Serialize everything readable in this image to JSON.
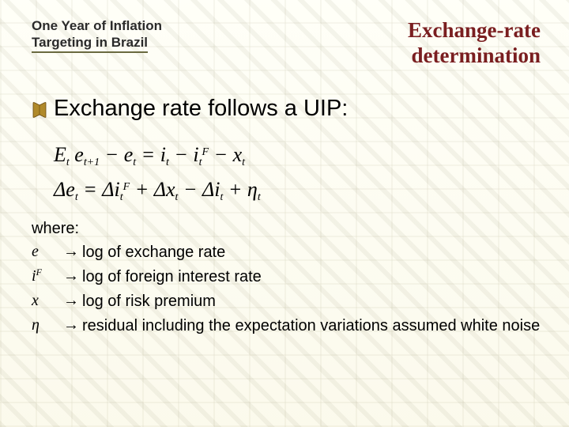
{
  "colors": {
    "title_text": "#2a2a2a",
    "main_title": "#7a1e20",
    "body_text": "#1a1a1a",
    "slide_bg": "#fbf9ea",
    "grid_line": "#82805a"
  },
  "header": {
    "left_line1": "One Year of Inflation",
    "left_line2": "Targeting in Brazil",
    "right_line1": "Exchange-rate",
    "right_line2": "determination"
  },
  "bullet": {
    "text": "Exchange rate follows a UIP:"
  },
  "equations": {
    "line1": {
      "html": "E<sub>t</sub> e<sub>t+1</sub> − e<sub>t</sub> = i<sub>t</sub> − i<sub>t</sub><sup>F</sup> − x<sub>t</sub>"
    },
    "line2": {
      "html": "Δe<sub>t</sub> = Δi<sub>t</sub><sup>F</sup> + Δx<sub>t</sub> − Δi<sub>t</sub> + η<sub>t</sub>"
    }
  },
  "where": {
    "label": "where:",
    "rows": [
      {
        "symbol": "e",
        "arrow": "→",
        "def": "log of  exchange rate"
      },
      {
        "symbol": "i<sup>F</sup>",
        "arrow": "→",
        "def": "log of foreign interest rate"
      },
      {
        "symbol": "x",
        "arrow": "→",
        "def": "log of risk premium"
      },
      {
        "symbol": "η",
        "arrow": "→",
        "def": "residual including the expectation variations  assumed white noise"
      }
    ]
  }
}
